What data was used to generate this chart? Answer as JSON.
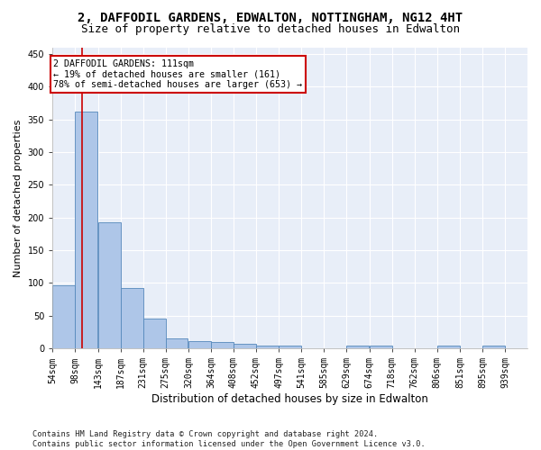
{
  "title": "2, DAFFODIL GARDENS, EDWALTON, NOTTINGHAM, NG12 4HT",
  "subtitle": "Size of property relative to detached houses in Edwalton",
  "xlabel": "Distribution of detached houses by size in Edwalton",
  "ylabel": "Number of detached properties",
  "bin_edges": [
    54,
    98,
    143,
    187,
    231,
    275,
    320,
    364,
    408,
    452,
    497,
    541,
    585,
    629,
    674,
    718,
    762,
    806,
    851,
    895,
    939
  ],
  "bar_heights": [
    96,
    362,
    193,
    93,
    46,
    15,
    11,
    10,
    7,
    5,
    4,
    0,
    0,
    5,
    5,
    0,
    0,
    4,
    0,
    4
  ],
  "bar_color": "#aec6e8",
  "bar_edgecolor": "#5588bb",
  "property_size": 111,
  "red_line_color": "#cc0000",
  "annotation_line1": "2 DAFFODIL GARDENS: 111sqm",
  "annotation_line2": "← 19% of detached houses are smaller (161)",
  "annotation_line3": "78% of semi-detached houses are larger (653) →",
  "annotation_box_color": "#ffffff",
  "annotation_box_edgecolor": "#cc0000",
  "ylim": [
    0,
    460
  ],
  "yticks": [
    0,
    50,
    100,
    150,
    200,
    250,
    300,
    350,
    400,
    450
  ],
  "background_color": "#e8eef8",
  "grid_color": "#ffffff",
  "footer": "Contains HM Land Registry data © Crown copyright and database right 2024.\nContains public sector information licensed under the Open Government Licence v3.0.",
  "title_fontsize": 10,
  "subtitle_fontsize": 9,
  "tick_labelsize": 7,
  "ylabel_fontsize": 8,
  "xlabel_fontsize": 8.5,
  "footer_fontsize": 6.2
}
